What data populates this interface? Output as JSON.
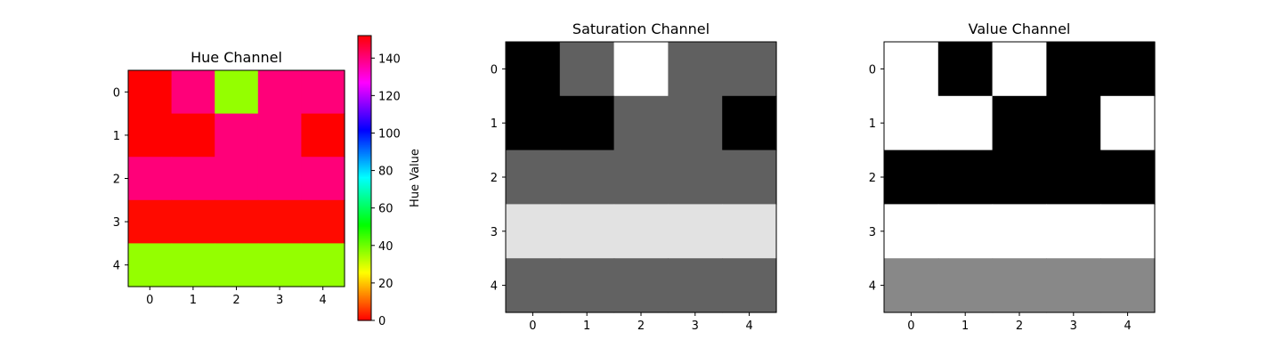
{
  "chart_data": [
    {
      "type": "heatmap",
      "title": "Hue Channel",
      "colormap": "hsv",
      "vmin": 0,
      "vmax": 152,
      "x_ticks": [
        "0",
        "1",
        "2",
        "3",
        "4"
      ],
      "y_ticks": [
        "0",
        "1",
        "2",
        "3",
        "4"
      ],
      "values": [
        [
          0,
          140,
          36,
          140,
          140
        ],
        [
          0,
          0,
          140,
          140,
          0
        ],
        [
          140,
          140,
          140,
          140,
          140
        ],
        [
          1,
          1,
          1,
          1,
          1
        ],
        [
          36,
          36,
          36,
          36,
          36
        ]
      ],
      "colorbar": {
        "label": "Hue Value",
        "ticks": [
          0,
          20,
          40,
          60,
          80,
          100,
          120,
          140
        ],
        "tick_labels": [
          "0",
          "20",
          "40",
          "60",
          "80",
          "100",
          "120",
          "140"
        ]
      }
    },
    {
      "type": "heatmap",
      "title": "Saturation Channel",
      "colormap": "gray",
      "vmin": 0,
      "vmax": 255,
      "x_ticks": [
        "0",
        "1",
        "2",
        "3",
        "4"
      ],
      "y_ticks": [
        "0",
        "1",
        "2",
        "3",
        "4"
      ],
      "values": [
        [
          0,
          96,
          255,
          96,
          96
        ],
        [
          0,
          0,
          96,
          96,
          0
        ],
        [
          96,
          96,
          96,
          96,
          96
        ],
        [
          226,
          226,
          226,
          226,
          226
        ],
        [
          98,
          98,
          98,
          98,
          98
        ]
      ]
    },
    {
      "type": "heatmap",
      "title": "Value Channel",
      "colormap": "gray",
      "vmin": 0,
      "vmax": 255,
      "x_ticks": [
        "0",
        "1",
        "2",
        "3",
        "4"
      ],
      "y_ticks": [
        "0",
        "1",
        "2",
        "3",
        "4"
      ],
      "values": [
        [
          255,
          0,
          255,
          0,
          0
        ],
        [
          255,
          255,
          0,
          0,
          255
        ],
        [
          0,
          0,
          0,
          0,
          0
        ],
        [
          255,
          255,
          255,
          255,
          255
        ],
        [
          136,
          136,
          136,
          136,
          136
        ]
      ]
    }
  ]
}
